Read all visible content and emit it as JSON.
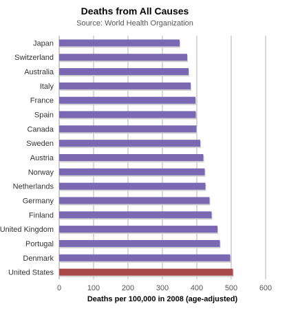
{
  "chart_data": {
    "type": "bar",
    "orientation": "horizontal",
    "title": "Deaths from All Causes",
    "subtitle": "Source: World Health Organization",
    "xlabel": "Deaths per 100,000 in 2008 (age-adjusted)",
    "ylabel": "",
    "xlim": [
      0,
      600
    ],
    "xticks": [
      0,
      100,
      200,
      300,
      400,
      500,
      600
    ],
    "grid": true,
    "categories": [
      "Japan",
      "Switzerland",
      "Australia",
      "Italy",
      "France",
      "Spain",
      "Canada",
      "Sweden",
      "Austria",
      "Norway",
      "Netherlands",
      "Germany",
      "Finland",
      "United Kingdom",
      "Portugal",
      "Denmark",
      "United States"
    ],
    "values": [
      350,
      372,
      376,
      382,
      396,
      397,
      399,
      410,
      419,
      423,
      425,
      437,
      443,
      460,
      467,
      497,
      505
    ],
    "colors": {
      "default": "#7b68b3",
      "highlight": "#a94a4a",
      "highlight_category": "United States",
      "grid": "#b0b0b0",
      "axis": "#999999"
    }
  }
}
